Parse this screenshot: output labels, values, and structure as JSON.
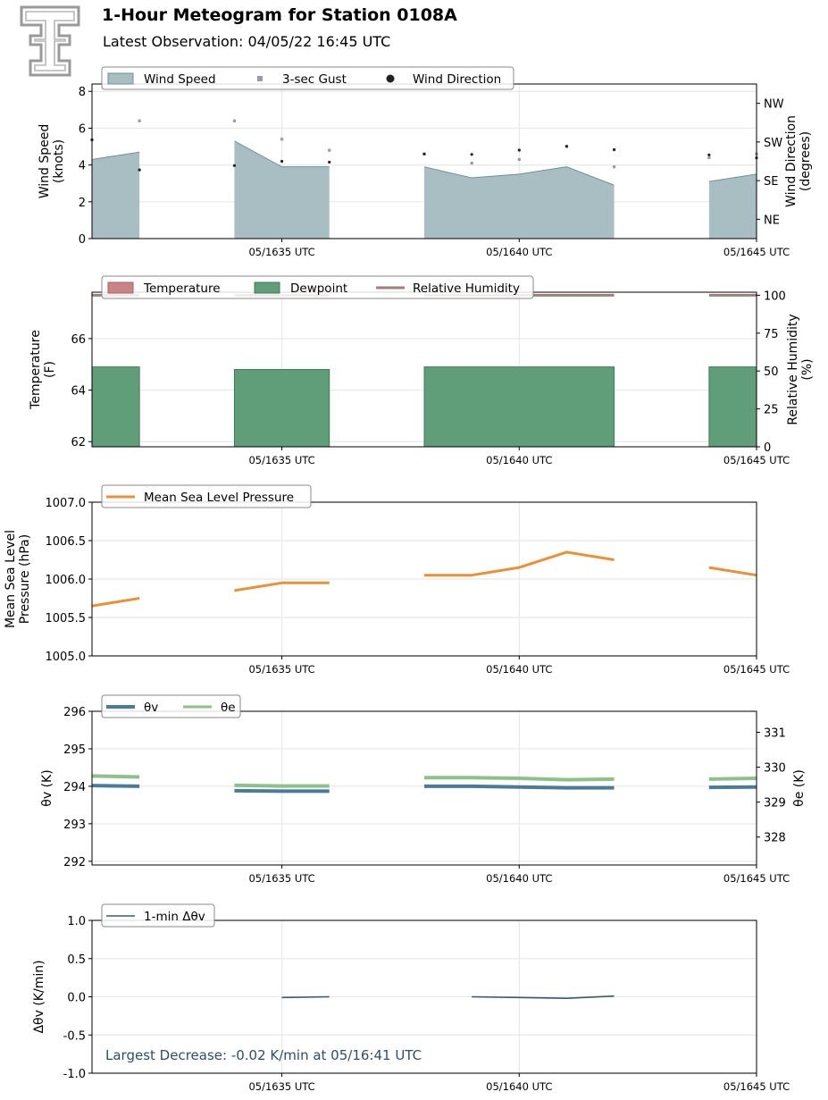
{
  "header": {
    "title": "1-Hour Meteogram for Station 0108A",
    "subtitle": "Latest Observation: 04/05/22 16:45 UTC"
  },
  "colors": {
    "wind_fill": "#a9bec3",
    "wind_line": "#6f8f98",
    "gust": "#9a9aa8",
    "direction": "#222222",
    "temperature": "#c98585",
    "dewpoint": "#5f9e78",
    "dewpoint_edge": "#3f7a58",
    "rh": "#9c7f7f",
    "mslp": "#e89138",
    "theta_v": "#4a7c99",
    "theta_e": "#8fc08a",
    "dtheta": "#3a5a6e",
    "grid": "#e8e8e8"
  },
  "logo": {
    "icon": "double-t-logo"
  },
  "chart_data": [
    {
      "id": "wind",
      "type": "area",
      "ylabel": "Wind Speed\n(knots)",
      "ylabel2": "Wind Direction\n(degrees)",
      "ylim": [
        0,
        8.4
      ],
      "yticks": [
        0,
        2,
        4,
        6,
        8
      ],
      "y2ticks": [
        {
          "label": "NE",
          "value": 45
        },
        {
          "label": "SE",
          "value": 135
        },
        {
          "label": "SW",
          "value": 225
        },
        {
          "label": "NW",
          "value": 315
        }
      ],
      "y2lim": [
        0,
        360
      ],
      "xlim": [
        0,
        14
      ],
      "xticks": [
        {
          "x": 4,
          "label": "05/1635 UTC"
        },
        {
          "x": 9,
          "label": "05/1640 UTC"
        },
        {
          "x": 14,
          "label": "05/1645 UTC"
        }
      ],
      "legend": [
        "Wind Speed",
        "3-sec Gust",
        "Wind Direction"
      ],
      "segments": [
        {
          "x": [
            0,
            1
          ],
          "y": [
            4.3,
            4.7
          ]
        },
        {
          "x": [
            3,
            4,
            5
          ],
          "y": [
            5.3,
            3.9,
            3.9
          ]
        },
        {
          "x": [
            7,
            8,
            9,
            10,
            11
          ],
          "y": [
            3.9,
            3.3,
            3.5,
            3.9,
            2.9
          ]
        },
        {
          "x": [
            13,
            14
          ],
          "y": [
            3.1,
            3.5
          ]
        }
      ],
      "gusts": [
        {
          "x": 1,
          "y": 6.4
        },
        {
          "x": 3,
          "y": 6.4
        },
        {
          "x": 4,
          "y": 5.4
        },
        {
          "x": 5,
          "y": 4.8
        },
        {
          "x": 7,
          "y": 4.6
        },
        {
          "x": 8,
          "y": 4.1
        },
        {
          "x": 9,
          "y": 4.3
        },
        {
          "x": 10,
          "y": 5.0
        },
        {
          "x": 11,
          "y": 3.9
        },
        {
          "x": 13,
          "y": 4.4
        },
        {
          "x": 14,
          "y": 4.6
        }
      ],
      "directions": [
        {
          "x": 0,
          "y": 230
        },
        {
          "x": 1,
          "y": 160
        },
        {
          "x": 3,
          "y": 170
        },
        {
          "x": 4,
          "y": 180
        },
        {
          "x": 5,
          "y": 178
        },
        {
          "x": 7,
          "y": 197
        },
        {
          "x": 8,
          "y": 196
        },
        {
          "x": 9,
          "y": 206
        },
        {
          "x": 10,
          "y": 215
        },
        {
          "x": 11,
          "y": 207
        },
        {
          "x": 13,
          "y": 195
        },
        {
          "x": 14,
          "y": 188
        }
      ]
    },
    {
      "id": "temp",
      "type": "bar",
      "ylabel": "Temperature\n(F)",
      "ylabel2": "Relative Humidity\n(%)",
      "ylim": [
        61.8,
        67.8
      ],
      "yticks": [
        62,
        64,
        66
      ],
      "y2lim": [
        0,
        102
      ],
      "y2ticks": [
        0,
        25,
        50,
        75,
        100
      ],
      "xlim": [
        0,
        14
      ],
      "xticks": [
        {
          "x": 4,
          "label": "05/1635 UTC"
        },
        {
          "x": 9,
          "label": "05/1640 UTC"
        },
        {
          "x": 14,
          "label": "05/1645 UTC"
        }
      ],
      "legend": [
        "Temperature",
        "Dewpoint",
        "Relative Humidity"
      ],
      "dewpoint_segments": [
        {
          "x": [
            0,
            1
          ],
          "y": 64.9
        },
        {
          "x": [
            3,
            5
          ],
          "y": 64.8
        },
        {
          "x": [
            7,
            11
          ],
          "y": 64.9
        },
        {
          "x": [
            13,
            14
          ],
          "y": 64.9
        }
      ],
      "rh_segments": [
        {
          "x": [
            0,
            1
          ],
          "y": 100
        },
        {
          "x": [
            3,
            5
          ],
          "y": 100
        },
        {
          "x": [
            7,
            11
          ],
          "y": 100
        },
        {
          "x": [
            13,
            14
          ],
          "y": 100
        }
      ]
    },
    {
      "id": "mslp",
      "type": "line",
      "ylabel": "Mean Sea Level\nPressure (hPa)",
      "ylim": [
        1005.0,
        1007.0
      ],
      "yticks": [
        1005.0,
        1005.5,
        1006.0,
        1006.5,
        1007.0
      ],
      "xlim": [
        0,
        14
      ],
      "xticks": [
        {
          "x": 4,
          "label": "05/1635 UTC"
        },
        {
          "x": 9,
          "label": "05/1640 UTC"
        },
        {
          "x": 14,
          "label": "05/1645 UTC"
        }
      ],
      "legend": [
        "Mean Sea Level Pressure"
      ],
      "segments": [
        {
          "x": [
            0,
            1
          ],
          "y": [
            1005.65,
            1005.75
          ]
        },
        {
          "x": [
            3,
            4,
            5
          ],
          "y": [
            1005.85,
            1005.95,
            1005.95
          ]
        },
        {
          "x": [
            7,
            8,
            9,
            10,
            11
          ],
          "y": [
            1006.05,
            1006.05,
            1006.15,
            1006.35,
            1006.25
          ]
        },
        {
          "x": [
            13,
            14
          ],
          "y": [
            1006.15,
            1006.05
          ]
        }
      ]
    },
    {
      "id": "theta",
      "type": "line",
      "ylabel": "θv (K)",
      "ylabel2": "θe (K)",
      "ylim": [
        291.9,
        296.0
      ],
      "yticks": [
        292,
        293,
        294,
        295,
        296
      ],
      "y2lim": [
        327.2,
        331.6
      ],
      "y2ticks": [
        328,
        329,
        330,
        331
      ],
      "xlim": [
        0,
        14
      ],
      "xticks": [
        {
          "x": 4,
          "label": "05/1635 UTC"
        },
        {
          "x": 9,
          "label": "05/1640 UTC"
        },
        {
          "x": 14,
          "label": "05/1645 UTC"
        }
      ],
      "legend": [
        "θv",
        "θe"
      ],
      "theta_v_segments": [
        {
          "x": [
            0,
            1
          ],
          "y": [
            294.02,
            294.0
          ]
        },
        {
          "x": [
            3,
            4,
            5
          ],
          "y": [
            293.88,
            293.87,
            293.87
          ]
        },
        {
          "x": [
            7,
            8,
            9,
            10,
            11
          ],
          "y": [
            294.0,
            294.0,
            293.98,
            293.96,
            293.96
          ]
        },
        {
          "x": [
            13,
            14
          ],
          "y": [
            293.97,
            293.98
          ]
        }
      ],
      "theta_e_segments": [
        {
          "x": [
            0,
            1
          ],
          "y": [
            329.75,
            329.72
          ]
        },
        {
          "x": [
            3,
            4,
            5
          ],
          "y": [
            329.48,
            329.46,
            329.46
          ]
        },
        {
          "x": [
            7,
            8,
            9,
            10,
            11
          ],
          "y": [
            329.7,
            329.7,
            329.68,
            329.64,
            329.66
          ]
        },
        {
          "x": [
            13,
            14
          ],
          "y": [
            329.66,
            329.68
          ]
        }
      ]
    },
    {
      "id": "dtheta",
      "type": "line",
      "ylabel": "Δθv (K/min)",
      "ylim": [
        -1.0,
        1.0
      ],
      "yticks": [
        -1.0,
        -0.5,
        0.0,
        0.5,
        1.0
      ],
      "xlim": [
        0,
        14
      ],
      "xticks": [
        {
          "x": 4,
          "label": "05/1635 UTC"
        },
        {
          "x": 9,
          "label": "05/1640 UTC"
        },
        {
          "x": 14,
          "label": "05/1645 UTC"
        }
      ],
      "legend": [
        "1-min Δθv"
      ],
      "segments": [
        {
          "x": [
            4,
            5
          ],
          "y": [
            -0.01,
            0.0
          ]
        },
        {
          "x": [
            8,
            9,
            10,
            11
          ],
          "y": [
            0.0,
            -0.01,
            -0.02,
            0.01
          ]
        }
      ],
      "annotation": "Largest Decrease: -0.02 K/min at 05/16:41 UTC"
    }
  ]
}
